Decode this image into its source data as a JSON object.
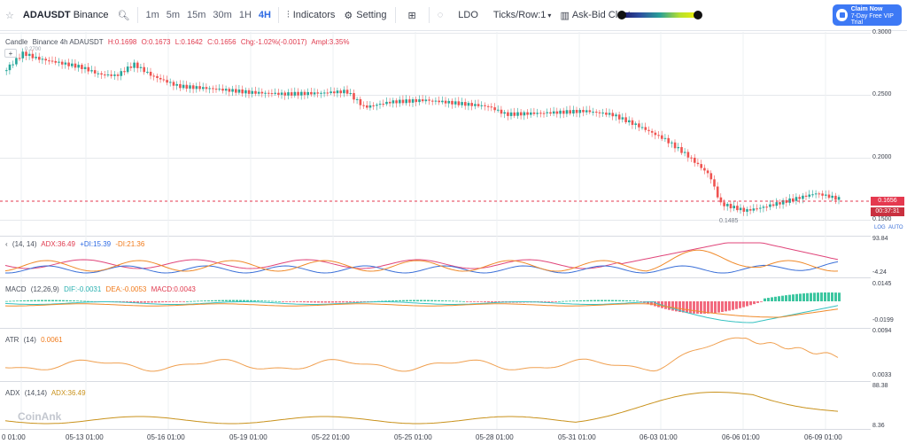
{
  "toolbar": {
    "symbol": "ADAUSDT",
    "exchange": "Binance",
    "timeframes": [
      "1m",
      "5m",
      "15m",
      "30m",
      "1H",
      "4H"
    ],
    "active_timeframe": "4H",
    "indicators_label": "Indicators",
    "setting_label": "Setting",
    "ldo_label": "LDO",
    "ticks_label": "Ticks/Row:1",
    "cluster_label": "Ask-Bid Cluster",
    "claim_title": "Claim Now",
    "claim_sub": "7-Day Free VIP Trial"
  },
  "main_legend": {
    "prefix": "Candle",
    "source": "Binance 4h ADAUSDT",
    "high": "H:0.1698",
    "open": "O:0.1673",
    "low": "L:0.1642",
    "close": "C:0.1656",
    "chg": "Chg:-1.02%(-0.0017)",
    "ampl": "Ampl:3.35%",
    "top_note": "0.2700"
  },
  "price_axis": [
    "0.3000",
    "0.2500",
    "0.2000",
    "0.1500"
  ],
  "last_price": "0.1656",
  "countdown": "00:37:31",
  "low_marker": "0.1485",
  "scale_buttons": [
    "LOG",
    "AUTO"
  ],
  "dmi": {
    "params": "(14, 14)",
    "adx": "ADX:36.49",
    "pdi": "+DI:15.39",
    "mdi": "-DI:21.36",
    "top": "93.84",
    "bottom": "-4.24"
  },
  "macd": {
    "label": "MACD",
    "params": "(12,26,9)",
    "dif": "DIF:-0.0031",
    "dea": "DEA:-0.0053",
    "macd": "MACD:0.0043",
    "top": "0.0145",
    "bottom": "-0.0199"
  },
  "atr": {
    "label": "ATR",
    "params": "(14)",
    "value": "0.0061",
    "top": "0.0094",
    "bottom": "0.0033"
  },
  "adx": {
    "label": "ADX",
    "params": "(14,14)",
    "value": "ADX:36.49",
    "top": "88.38",
    "bottom": "8.36"
  },
  "time_axis": [
    "0 01:00",
    "05-13 01:00",
    "05-16 01:00",
    "05-19 01:00",
    "05-22 01:00",
    "05-25 01:00",
    "05-28 01:00",
    "05-31 01:00",
    "06-03 01:00",
    "06-06 01:00",
    "06-09 01:00"
  ],
  "watermark": "CoinAnk",
  "colors": {
    "up": "#26a69a",
    "down": "#ef5350",
    "accent": "#2d6ae3"
  }
}
